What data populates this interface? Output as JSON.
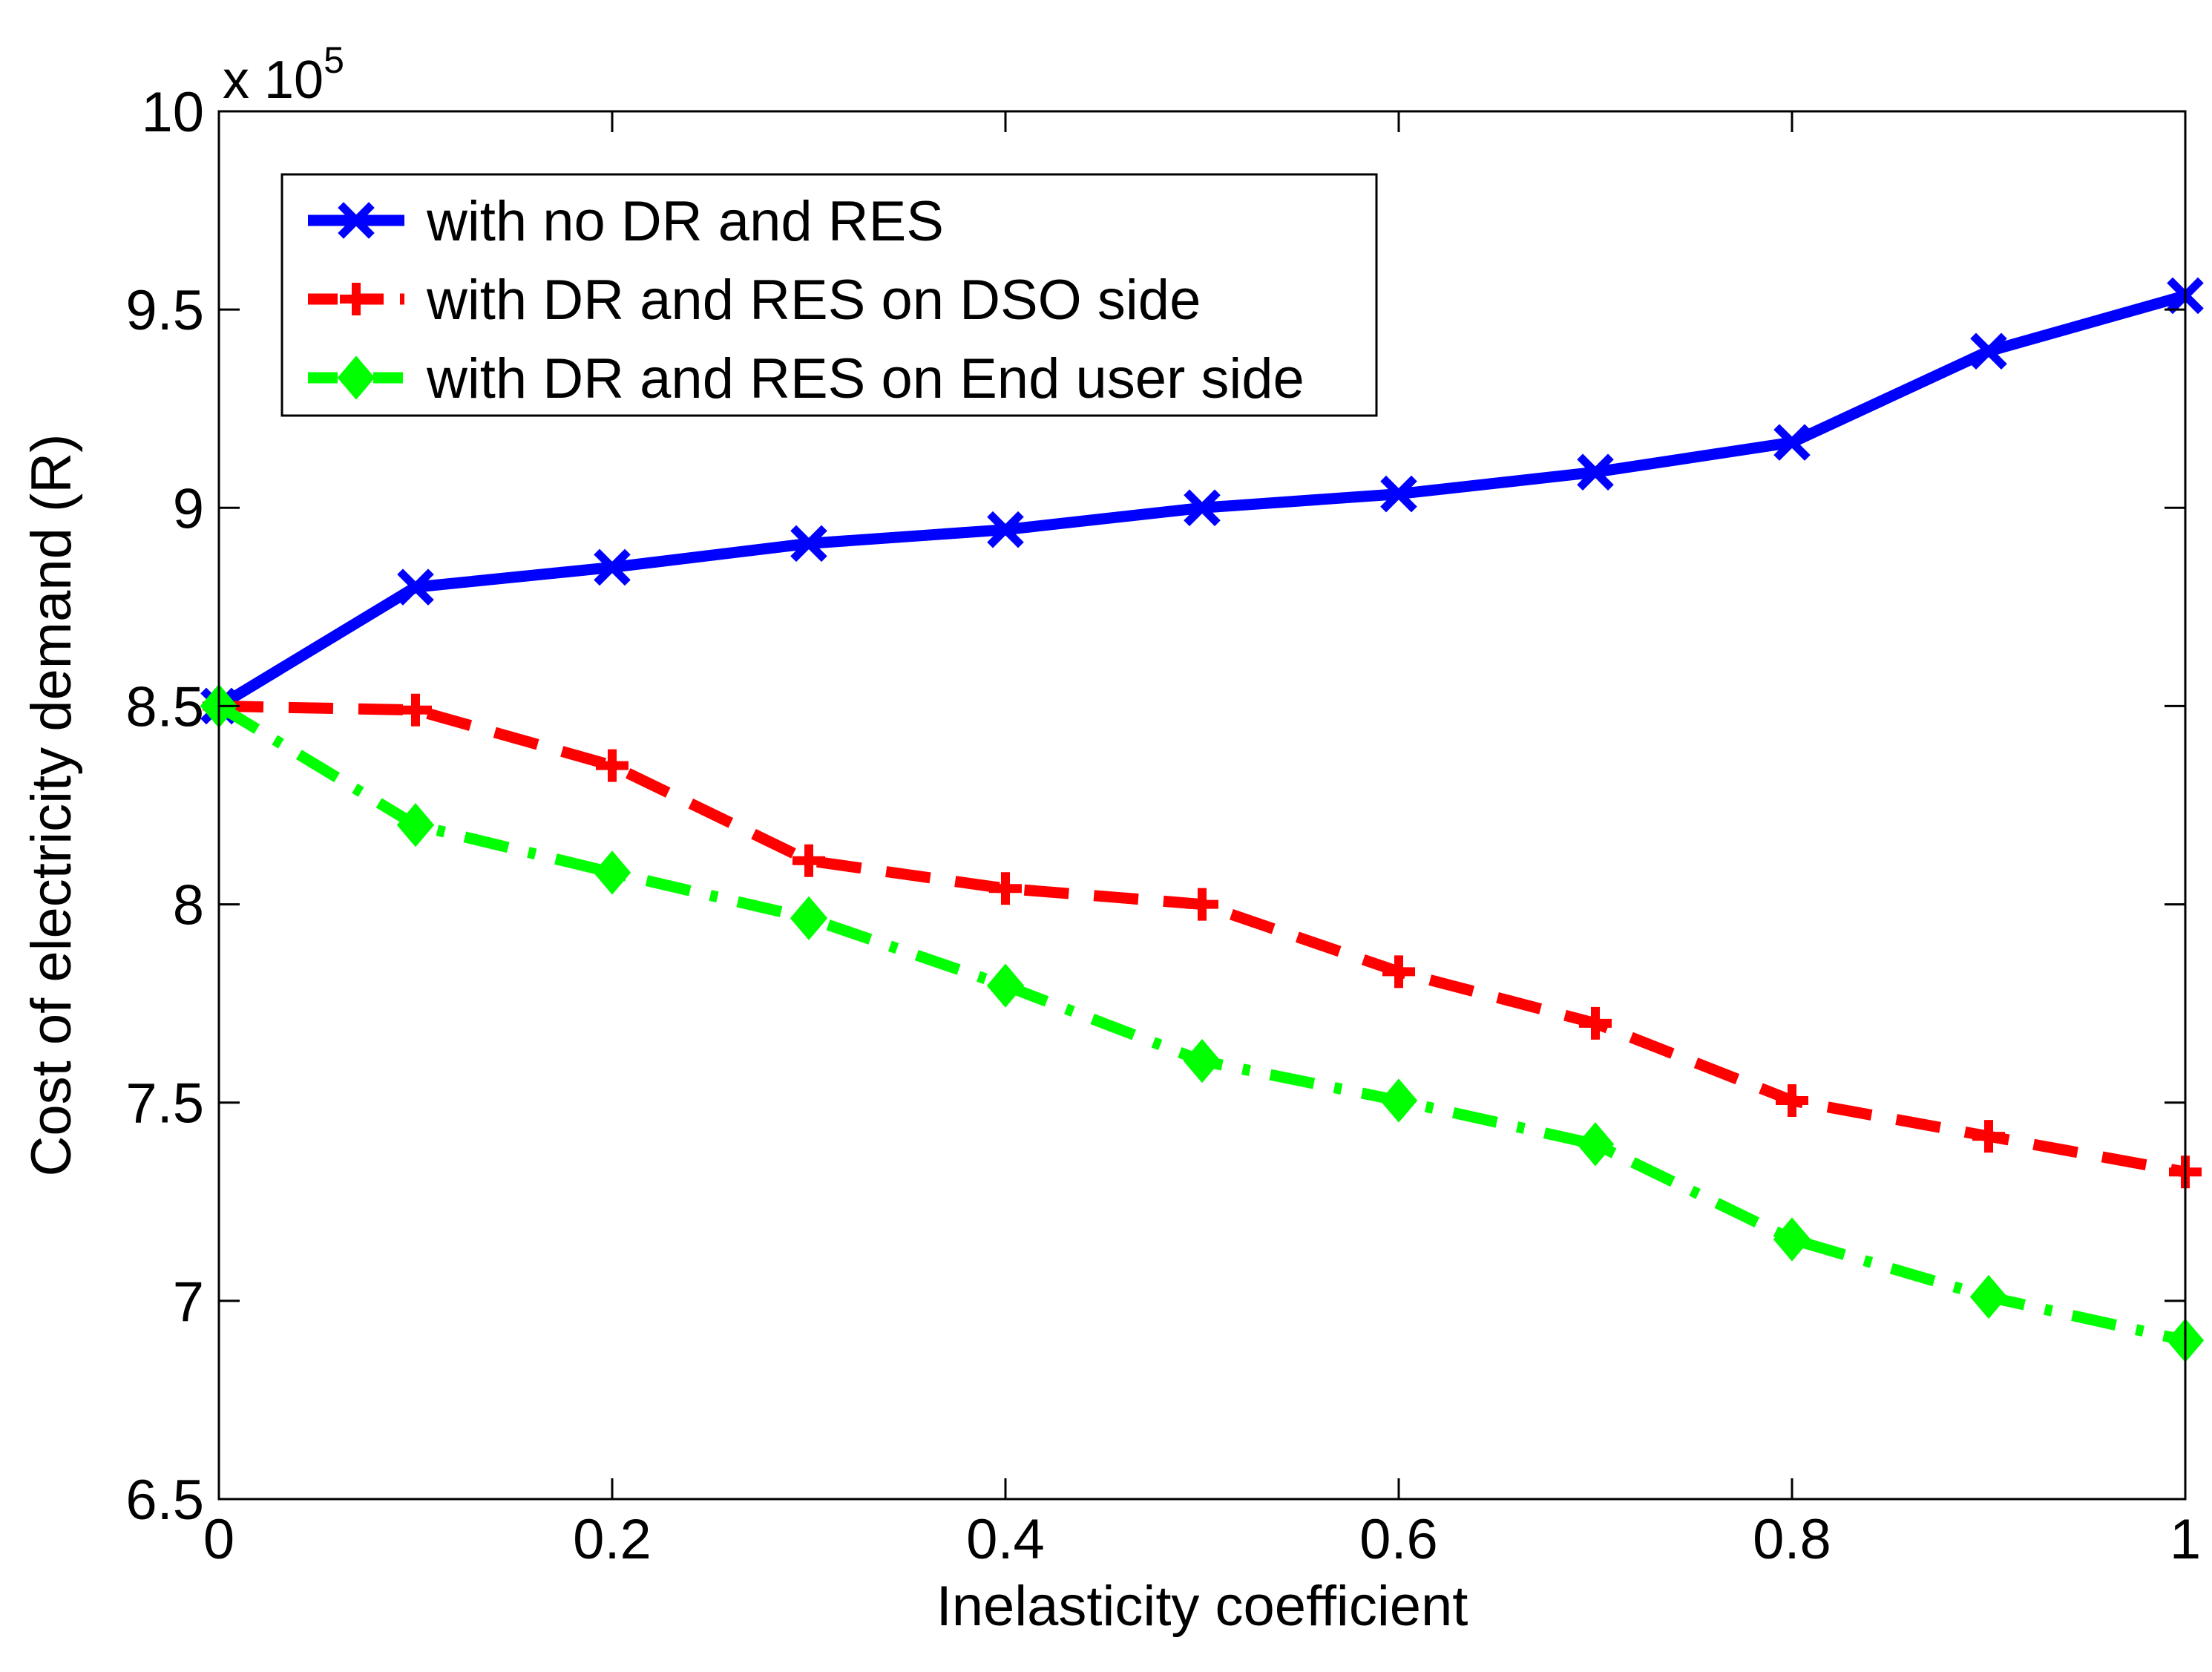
{
  "chart_data": {
    "type": "line",
    "xlabel": "Inelasticity coefficient",
    "ylabel": "Cost of electricity demand (R)",
    "exponent_label": {
      "base": "x 10",
      "power": "5"
    },
    "xlim": [
      0,
      1
    ],
    "ylim": [
      6.5,
      10
    ],
    "x_ticks": [
      0,
      0.2,
      0.4,
      0.6,
      0.8,
      1
    ],
    "x_tick_labels": [
      "0",
      "0.2",
      "0.4",
      "0.6",
      "0.8",
      "1"
    ],
    "y_ticks": [
      6.5,
      7,
      7.5,
      8,
      8.5,
      9,
      9.5,
      10
    ],
    "y_tick_labels": [
      "6.5",
      "7",
      "7.5",
      "8",
      "8.5",
      "9",
      "9.5",
      "10"
    ],
    "grid": false,
    "legend_position": "top-left",
    "x": [
      0,
      0.1,
      0.2,
      0.3,
      0.4,
      0.5,
      0.6,
      0.7,
      0.8,
      0.9,
      1.0
    ],
    "series": [
      {
        "name": "with no DR and RES",
        "color": "#0000ff",
        "line_style": "solid",
        "marker": "x",
        "values": [
          8.5,
          8.8,
          8.85,
          8.91,
          8.945,
          9.0,
          9.035,
          9.09,
          9.165,
          9.395,
          9.535
        ]
      },
      {
        "name": "with DR and RES on DSO side",
        "color": "#ff0000",
        "line_style": "dashed",
        "marker": "plus",
        "values": [
          8.5,
          8.49,
          8.35,
          8.11,
          8.04,
          8.0,
          7.83,
          7.7,
          7.505,
          7.415,
          7.325
        ]
      },
      {
        "name": "with DR and RES on End user side",
        "color": "#00ff00",
        "line_style": "dashdot",
        "marker": "diamond",
        "values": [
          8.5,
          8.2,
          8.08,
          7.965,
          7.795,
          7.605,
          7.505,
          7.395,
          7.155,
          7.01,
          6.9
        ]
      }
    ]
  }
}
